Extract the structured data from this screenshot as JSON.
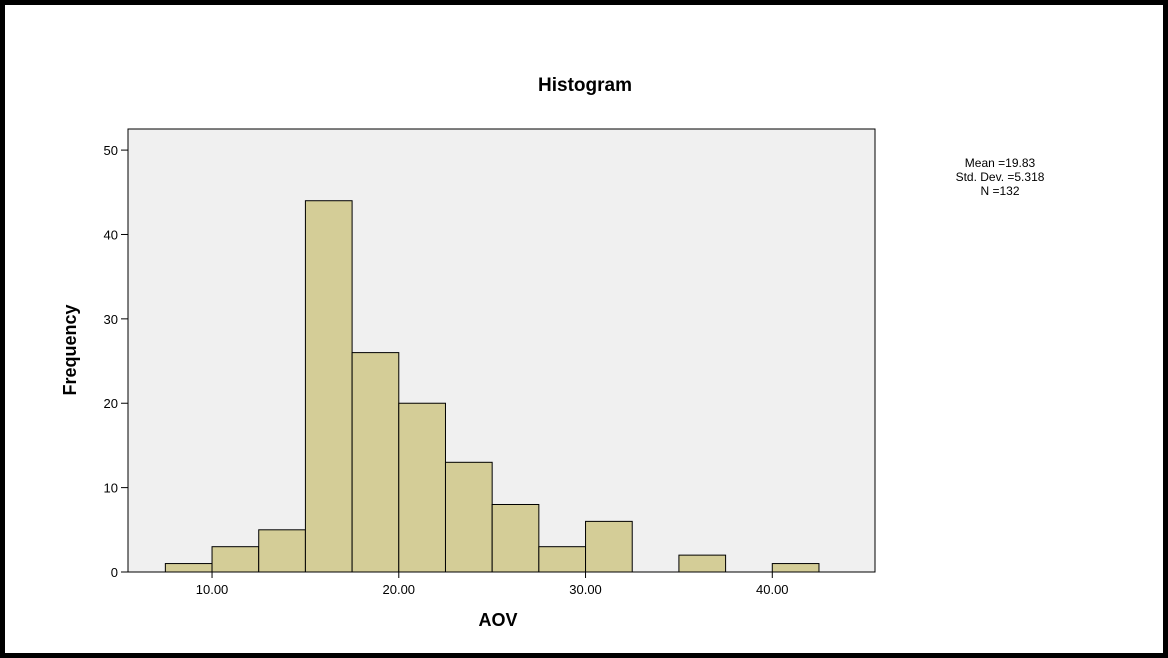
{
  "chart_data": {
    "type": "bar",
    "subtype": "histogram",
    "title": "Histogram",
    "xlabel": "AOV",
    "ylabel": "Frequency",
    "bins": [
      {
        "start": 7.5,
        "end": 10.0,
        "count": 1
      },
      {
        "start": 10.0,
        "end": 12.5,
        "count": 3
      },
      {
        "start": 12.5,
        "end": 15.0,
        "count": 5
      },
      {
        "start": 15.0,
        "end": 17.5,
        "count": 44
      },
      {
        "start": 17.5,
        "end": 20.0,
        "count": 26
      },
      {
        "start": 20.0,
        "end": 22.5,
        "count": 20
      },
      {
        "start": 22.5,
        "end": 25.0,
        "count": 13
      },
      {
        "start": 25.0,
        "end": 27.5,
        "count": 8
      },
      {
        "start": 27.5,
        "end": 30.0,
        "count": 3
      },
      {
        "start": 30.0,
        "end": 32.5,
        "count": 6
      },
      {
        "start": 32.5,
        "end": 35.0,
        "count": 0
      },
      {
        "start": 35.0,
        "end": 37.5,
        "count": 2
      },
      {
        "start": 37.5,
        "end": 40.0,
        "count": 0
      },
      {
        "start": 40.0,
        "end": 42.5,
        "count": 1
      }
    ],
    "x_ticks": [
      {
        "value": 10,
        "label": "10.00"
      },
      {
        "value": 20,
        "label": "20.00"
      },
      {
        "value": 30,
        "label": "30.00"
      },
      {
        "value": 40,
        "label": "40.00"
      }
    ],
    "y_ticks": [
      0,
      10,
      20,
      30,
      40,
      50
    ],
    "xlim": [
      5.5,
      45.5
    ],
    "ylim": [
      0,
      52.5
    ],
    "grid": false,
    "bar_color": "#d4cd97",
    "plot_background": "#f0f0f0",
    "stats": {
      "mean": "Mean =19.83",
      "std_dev": "Std. Dev. =5.318",
      "n": "N =132"
    }
  }
}
